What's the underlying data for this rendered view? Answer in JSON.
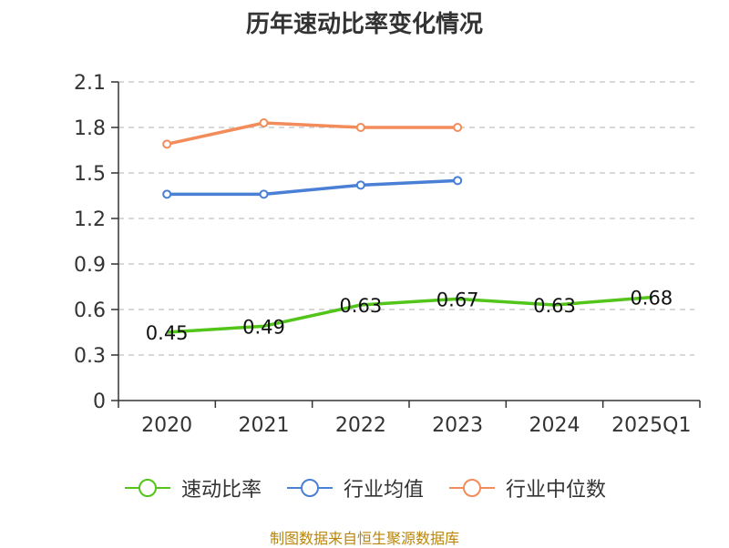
{
  "chart_data": {
    "type": "line",
    "title": "历年速动比率变化情况",
    "categories": [
      "2020",
      "2021",
      "2022",
      "2023",
      "2024",
      "2025Q1"
    ],
    "ylim": [
      0,
      2.1
    ],
    "yticks": [
      "0",
      "0.3",
      "0.6",
      "0.9",
      "1.2",
      "1.5",
      "1.8",
      "2.1"
    ],
    "grid": true,
    "legend_position": "bottom",
    "series": [
      {
        "name": "速动比率",
        "color": "#52c41a",
        "values": [
          0.45,
          0.49,
          0.63,
          0.67,
          0.63,
          0.68
        ],
        "labels": [
          "0.45",
          "0.49",
          "0.63",
          "0.67",
          "0.63",
          "0.68"
        ],
        "markers": false
      },
      {
        "name": "行业均值",
        "color": "#4a7fd6",
        "values": [
          1.36,
          1.36,
          1.42,
          1.45,
          null,
          null
        ],
        "markers": true
      },
      {
        "name": "行业中位数",
        "color": "#f28c5a",
        "values": [
          1.69,
          1.83,
          1.8,
          1.8,
          null,
          null
        ],
        "markers": true
      }
    ]
  },
  "source": "制图数据来自恒生聚源数据库"
}
